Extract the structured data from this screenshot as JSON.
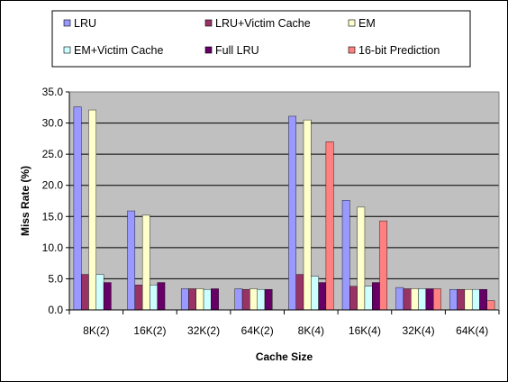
{
  "chart_data": {
    "type": "bar",
    "title": "",
    "xlabel": "Cache Size",
    "ylabel": "Miss Rate (%)",
    "ylim": [
      0,
      35
    ],
    "yticks": [
      "0.0",
      "5.0",
      "10.0",
      "15.0",
      "20.0",
      "25.0",
      "30.0",
      "35.0"
    ],
    "grid": true,
    "legend_position": "top",
    "categories": [
      "8K(2)",
      "16K(2)",
      "32K(2)",
      "64K(2)",
      "8K(4)",
      "16K(4)",
      "32K(4)",
      "64K(4)"
    ],
    "series": [
      {
        "name": "LRU",
        "color": "#9999FF",
        "values": [
          32.6,
          15.9,
          3.4,
          3.4,
          31.1,
          17.6,
          3.6,
          3.3
        ]
      },
      {
        "name": "LRU+Victim Cache",
        "color": "#993366",
        "values": [
          5.7,
          4.0,
          3.4,
          3.3,
          5.7,
          3.8,
          3.4,
          3.3
        ]
      },
      {
        "name": "EM",
        "color": "#FFFFCC",
        "values": [
          32.1,
          15.2,
          3.4,
          3.4,
          30.5,
          16.5,
          3.4,
          3.3
        ]
      },
      {
        "name": "EM+Victim Cache",
        "color": "#CCFFFF",
        "values": [
          5.7,
          4.0,
          3.3,
          3.3,
          5.4,
          3.8,
          3.4,
          3.3
        ]
      },
      {
        "name": "Full LRU",
        "color": "#660066",
        "values": [
          4.4,
          4.4,
          3.4,
          3.3,
          4.4,
          4.4,
          3.4,
          3.3
        ]
      },
      {
        "name": "16-bit Prediction",
        "color": "#FF8080",
        "values": [
          null,
          null,
          null,
          null,
          27.0,
          14.3,
          3.4,
          1.5
        ]
      }
    ],
    "plot_background": "#C0C0C0"
  }
}
